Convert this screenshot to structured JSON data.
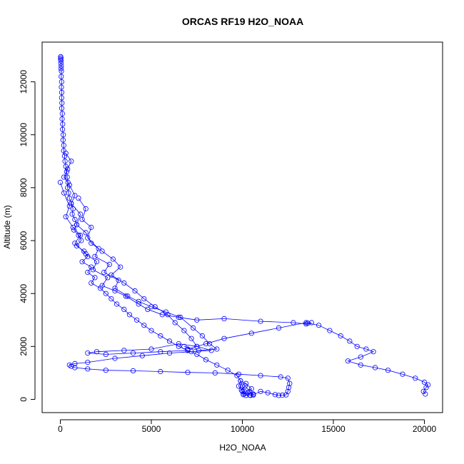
{
  "chart_data": {
    "type": "scatter",
    "title": "ORCAS RF19 H2O_NOAA",
    "xlabel": "H2O_NOAA",
    "ylabel": "Altitude (m)",
    "xlim": [
      -1000,
      21000
    ],
    "ylim": [
      -500,
      13500
    ],
    "xticks": [
      0,
      5000,
      10000,
      15000,
      20000
    ],
    "yticks": [
      0,
      2000,
      4000,
      6000,
      8000,
      10000,
      12000
    ],
    "grid": false,
    "legend": "none",
    "marker": "open-circle",
    "connected": true,
    "colors": {
      "series": "#0000ff",
      "axis": "#000000",
      "background": "#ffffff"
    },
    "series": [
      {
        "points": [
          [
            20,
            12950
          ],
          [
            30,
            12900
          ],
          [
            20,
            12850
          ],
          [
            40,
            12800
          ],
          [
            30,
            12700
          ],
          [
            50,
            12600
          ],
          [
            40,
            12500
          ],
          [
            60,
            12400
          ],
          [
            50,
            12200
          ],
          [
            70,
            12000
          ],
          [
            60,
            11800
          ],
          [
            80,
            11600
          ],
          [
            70,
            11400
          ],
          [
            90,
            11200
          ],
          [
            80,
            11000
          ],
          [
            110,
            10800
          ],
          [
            100,
            10600
          ],
          [
            130,
            10400
          ],
          [
            120,
            10200
          ],
          [
            160,
            10000
          ],
          [
            150,
            9800
          ],
          [
            190,
            9600
          ],
          [
            180,
            9400
          ],
          [
            230,
            9200
          ],
          [
            260,
            9000
          ],
          [
            300,
            8800
          ],
          [
            350,
            8600
          ],
          [
            380,
            8400
          ],
          [
            420,
            8200
          ],
          [
            400,
            8000
          ],
          [
            450,
            7800
          ],
          [
            500,
            7600
          ],
          [
            600,
            7400
          ],
          [
            700,
            7200
          ],
          [
            650,
            7000
          ],
          [
            800,
            6800
          ],
          [
            900,
            6600
          ],
          [
            750,
            6400
          ],
          [
            1000,
            6200
          ],
          [
            1150,
            6000
          ],
          [
            900,
            5800
          ],
          [
            1300,
            5600
          ],
          [
            1500,
            5400
          ],
          [
            1200,
            5200
          ],
          [
            1700,
            5000
          ],
          [
            1500,
            4800
          ],
          [
            1900,
            4600
          ],
          [
            1700,
            4400
          ],
          [
            2200,
            4200
          ],
          [
            2500,
            4000
          ],
          [
            2800,
            3800
          ],
          [
            3100,
            3600
          ],
          [
            3500,
            3400
          ],
          [
            3800,
            3200
          ],
          [
            4200,
            3000
          ],
          [
            4600,
            2800
          ],
          [
            5000,
            2600
          ],
          [
            5500,
            2400
          ],
          [
            6000,
            2200
          ],
          [
            6500,
            2000
          ],
          [
            7000,
            1850
          ],
          [
            7500,
            1700
          ],
          [
            8000,
            1500
          ],
          [
            8600,
            1300
          ],
          [
            9200,
            1100
          ],
          [
            9700,
            900
          ],
          [
            9900,
            700
          ],
          [
            10000,
            500
          ],
          [
            10100,
            300
          ],
          [
            10050,
            180
          ],
          [
            10200,
            150
          ],
          [
            10400,
            160
          ],
          [
            10600,
            170
          ]
        ]
      },
      {
        "points": [
          [
            10600,
            170
          ],
          [
            11000,
            300
          ],
          [
            11400,
            250
          ],
          [
            11800,
            180
          ],
          [
            12000,
            150
          ],
          [
            12200,
            160
          ],
          [
            12400,
            170
          ],
          [
            12500,
            300
          ],
          [
            12550,
            450
          ],
          [
            12600,
            600
          ],
          [
            12500,
            800
          ],
          [
            12100,
            850
          ],
          [
            11000,
            900
          ],
          [
            9800,
            950
          ],
          [
            8500,
            1000
          ],
          [
            7000,
            1020
          ],
          [
            5500,
            1050
          ],
          [
            4000,
            1080
          ],
          [
            2500,
            1100
          ],
          [
            1500,
            1150
          ],
          [
            800,
            1200
          ],
          [
            600,
            1250
          ],
          [
            500,
            1300
          ],
          [
            800,
            1350
          ],
          [
            1500,
            1400
          ],
          [
            3000,
            1550
          ],
          [
            4500,
            1650
          ],
          [
            6000,
            1750
          ],
          [
            7200,
            1800
          ],
          [
            8300,
            1850
          ],
          [
            7500,
            2000
          ],
          [
            6500,
            2100
          ],
          [
            5000,
            1900
          ],
          [
            3500,
            1850
          ],
          [
            2000,
            1800
          ],
          [
            1500,
            1750
          ],
          [
            2500,
            1700
          ],
          [
            4000,
            1750
          ],
          [
            5500,
            1800
          ],
          [
            7000,
            1850
          ]
        ]
      },
      {
        "points": [
          [
            7000,
            1900
          ],
          [
            8000,
            2100
          ],
          [
            9000,
            2300
          ],
          [
            10500,
            2500
          ],
          [
            12000,
            2700
          ],
          [
            13500,
            2900
          ],
          [
            14200,
            2800
          ],
          [
            14800,
            2600
          ],
          [
            15400,
            2400
          ],
          [
            15900,
            2200
          ],
          [
            16300,
            2000
          ],
          [
            16800,
            1900
          ],
          [
            17200,
            1800
          ],
          [
            16500,
            1600
          ],
          [
            15800,
            1450
          ],
          [
            16500,
            1300
          ],
          [
            17300,
            1200
          ],
          [
            18000,
            1100
          ],
          [
            18800,
            950
          ],
          [
            19500,
            800
          ],
          [
            20000,
            650
          ],
          [
            20200,
            550
          ],
          [
            20100,
            450
          ],
          [
            19950,
            300
          ],
          [
            20050,
            200
          ]
        ]
      },
      {
        "points": [
          [
            0,
            8200
          ],
          [
            200,
            7800
          ],
          [
            500,
            7300
          ],
          [
            300,
            6900
          ],
          [
            700,
            6500
          ],
          [
            1100,
            6200
          ],
          [
            800,
            5900
          ],
          [
            1400,
            5500
          ],
          [
            2000,
            5200
          ],
          [
            1800,
            4900
          ],
          [
            2600,
            4600
          ],
          [
            2300,
            4300
          ],
          [
            3000,
            4100
          ],
          [
            3600,
            3900
          ],
          [
            4300,
            3600
          ],
          [
            4800,
            3400
          ],
          [
            5600,
            3200
          ],
          [
            6500,
            3100
          ],
          [
            7500,
            3000
          ],
          [
            9000,
            3050
          ],
          [
            11000,
            2950
          ],
          [
            12800,
            2900
          ],
          [
            13500,
            2850
          ],
          [
            13800,
            2900
          ],
          [
            13600,
            2880
          ]
        ]
      },
      {
        "points": [
          [
            1000,
            7600
          ],
          [
            1400,
            7200
          ],
          [
            1200,
            6800
          ],
          [
            1700,
            6500
          ],
          [
            1500,
            6100
          ],
          [
            2100,
            5700
          ],
          [
            1900,
            5400
          ],
          [
            2700,
            5100
          ],
          [
            2400,
            4800
          ],
          [
            3200,
            4500
          ],
          [
            3000,
            4200
          ],
          [
            3700,
            3900
          ],
          [
            4300,
            3700
          ],
          [
            5000,
            3500
          ],
          [
            5800,
            3300
          ],
          [
            6600,
            3100
          ],
          [
            7300,
            2700
          ],
          [
            7800,
            2400
          ],
          [
            8200,
            2100
          ],
          [
            8600,
            1900
          ],
          [
            7600,
            1850
          ],
          [
            6800,
            2000
          ]
        ]
      },
      {
        "points": [
          [
            300,
            9300
          ],
          [
            600,
            9000
          ],
          [
            400,
            8700
          ],
          [
            200,
            8400
          ],
          [
            500,
            8100
          ],
          [
            800,
            7700
          ],
          [
            600,
            7400
          ],
          [
            1100,
            7000
          ],
          [
            900,
            6600
          ],
          [
            1400,
            6300
          ],
          [
            1700,
            5900
          ],
          [
            2300,
            5600
          ],
          [
            2900,
            5300
          ],
          [
            3300,
            5000
          ],
          [
            2800,
            4700
          ],
          [
            3500,
            4400
          ],
          [
            4100,
            4100
          ],
          [
            4600,
            3800
          ],
          [
            5200,
            3500
          ],
          [
            5900,
            3200
          ],
          [
            6300,
            2900
          ],
          [
            6800,
            2600
          ],
          [
            7200,
            2300
          ],
          [
            7500,
            2000
          ]
        ]
      },
      {
        "points": [
          [
            10000,
            300
          ],
          [
            9800,
            500
          ],
          [
            9900,
            700
          ],
          [
            10200,
            600
          ],
          [
            10500,
            400
          ],
          [
            10300,
            250
          ],
          [
            10100,
            200
          ],
          [
            9950,
            350
          ],
          [
            10150,
            500
          ],
          [
            10400,
            300
          ],
          [
            10600,
            200
          ],
          [
            10450,
            150
          ]
        ]
      }
    ]
  }
}
